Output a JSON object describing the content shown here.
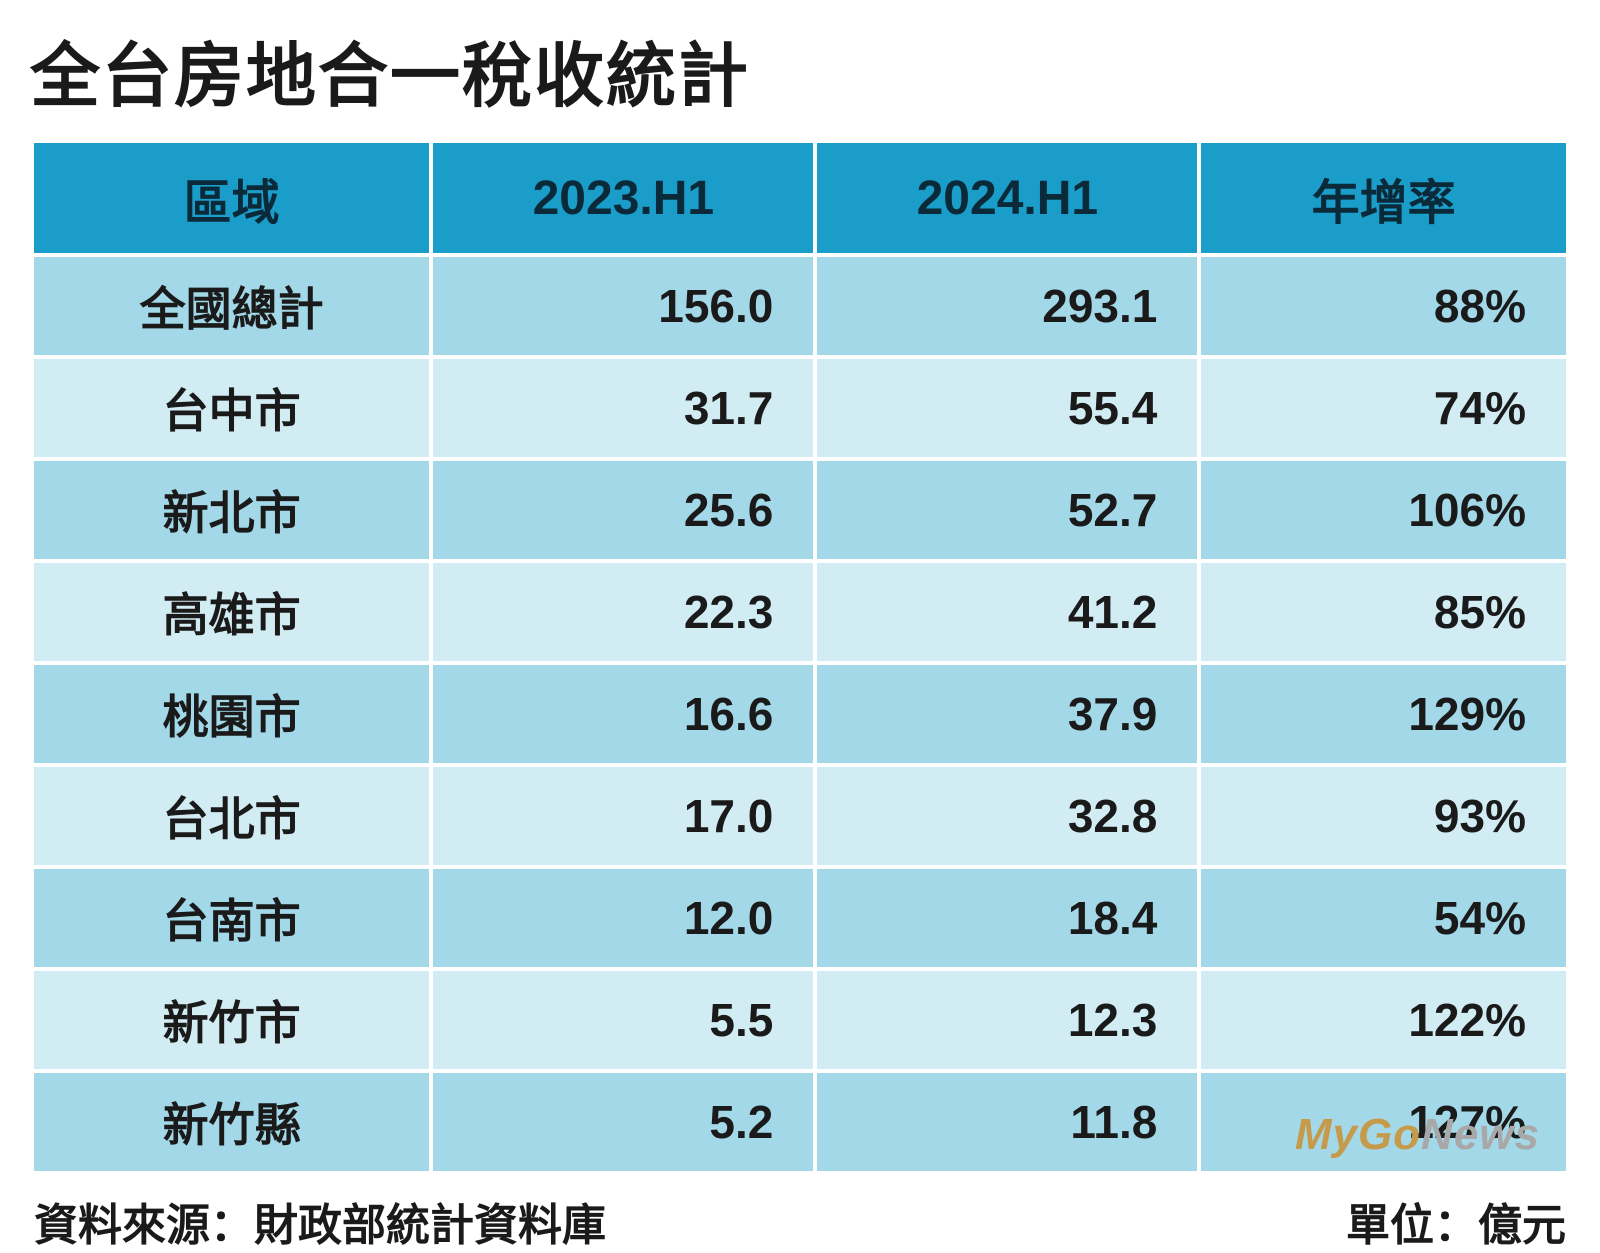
{
  "title": "全台房地合一稅收統計",
  "table": {
    "type": "table",
    "columns": [
      "區域",
      "2023.H1",
      "2024.H1",
      "年增率"
    ],
    "column_widths_pct": [
      26,
      25,
      25,
      24
    ],
    "header_bg": "#1a9dc9",
    "header_text_color": "#0a2a3a",
    "row_odd_bg": "#a3d8e8",
    "row_even_bg": "#d2ecf4",
    "border_color": "#ffffff",
    "text_color": "#1a1a1a",
    "header_fontsize": 48,
    "cell_fontsize": 46,
    "rows": [
      {
        "region": "全國總計",
        "h1_2023": "156.0",
        "h1_2024": "293.1",
        "growth": "88%"
      },
      {
        "region": "台中市",
        "h1_2023": "31.7",
        "h1_2024": "55.4",
        "growth": "74%"
      },
      {
        "region": "新北市",
        "h1_2023": "25.6",
        "h1_2024": "52.7",
        "growth": "106%"
      },
      {
        "region": "高雄市",
        "h1_2023": "22.3",
        "h1_2024": "41.2",
        "growth": "85%"
      },
      {
        "region": "桃園市",
        "h1_2023": "16.6",
        "h1_2024": "37.9",
        "growth": "129%"
      },
      {
        "region": "台北市",
        "h1_2023": "17.0",
        "h1_2024": "32.8",
        "growth": "93%"
      },
      {
        "region": "台南市",
        "h1_2023": "12.0",
        "h1_2024": "18.4",
        "growth": "54%"
      },
      {
        "region": "新竹市",
        "h1_2023": "5.5",
        "h1_2024": "12.3",
        "growth": "122%"
      },
      {
        "region": "新竹縣",
        "h1_2023": "5.2",
        "h1_2024": "11.8",
        "growth": "127%"
      }
    ]
  },
  "footer": {
    "source_label": "資料來源：財政部統計資料庫",
    "unit_label": "單位：億元"
  },
  "watermark": {
    "text_my": "My",
    "text_go": "Go",
    "text_news": "News",
    "color_brand": "#c59a4a",
    "color_news": "#a8a8a8"
  },
  "styling": {
    "background_color": "#ffffff",
    "title_fontsize": 70,
    "title_color": "#1a1a1a",
    "footer_fontsize": 44,
    "font_family": "Microsoft JhengHei"
  }
}
